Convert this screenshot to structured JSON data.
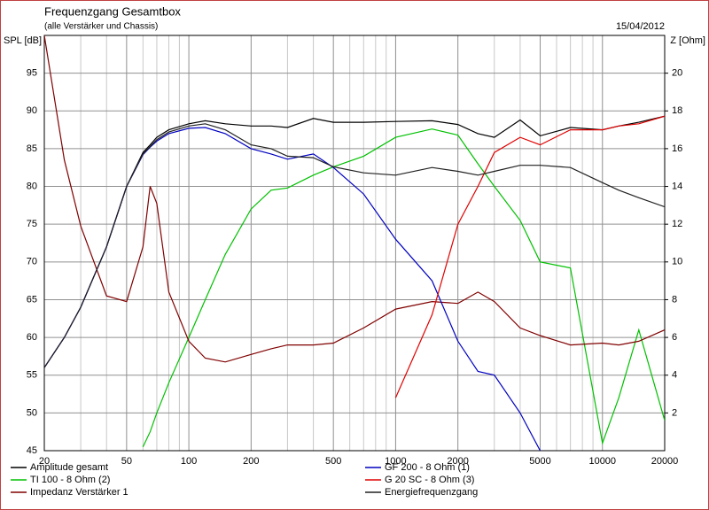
{
  "chart_data": {
    "type": "line",
    "title": "Frequenzgang Gesamtbox",
    "subtitle": "(alle Verstärker und Chassis)",
    "date": "15/04/2012",
    "ylabel": "SPL [dB]",
    "y2label": "Z [Ohm]",
    "log_x": true,
    "grid": true,
    "xlim": [
      20,
      20000
    ],
    "xticks": [
      20,
      50,
      100,
      200,
      500,
      1000,
      2000,
      5000,
      10000,
      20000
    ],
    "xminorticks": [
      30,
      40,
      60,
      70,
      80,
      90,
      300,
      400,
      600,
      700,
      800,
      900,
      3000,
      4000,
      6000,
      7000,
      8000,
      9000
    ],
    "ylim": [
      45,
      100
    ],
    "yticks": [
      45,
      50,
      55,
      60,
      65,
      70,
      75,
      80,
      85,
      90,
      95
    ],
    "y2lim": [
      0,
      22
    ],
    "y2ticks": [
      2,
      4,
      6,
      8,
      10,
      12,
      14,
      16,
      18,
      20
    ],
    "x": [
      20,
      25,
      30,
      40,
      50,
      60,
      65,
      70,
      80,
      100,
      120,
      150,
      200,
      250,
      300,
      400,
      500,
      700,
      1000,
      1500,
      2000,
      2500,
      3000,
      4000,
      5000,
      7000,
      10000,
      12000,
      15000,
      20000
    ],
    "series": [
      {
        "name": "Amplitude gesamt",
        "color": "#000000",
        "values": [
          56,
          60,
          64,
          72,
          80,
          84.5,
          85.5,
          86.5,
          87.5,
          88.3,
          88.7,
          88.3,
          88,
          88,
          87.8,
          89,
          88.5,
          88.5,
          88.6,
          88.7,
          88.2,
          87,
          86.5,
          88.8,
          86.7,
          87.8,
          87.5,
          88,
          88.5,
          89.3
        ]
      },
      {
        "name": "TI 100 - 8 Ohm (2)",
        "color": "#00c000",
        "values": [
          null,
          null,
          null,
          null,
          null,
          45.5,
          47.5,
          50,
          54,
          60,
          65,
          71,
          77,
          79.5,
          79.8,
          81.5,
          82.6,
          84,
          86.5,
          87.6,
          86.8,
          83,
          80,
          75.5,
          70,
          69.2,
          46,
          52,
          61,
          49
        ]
      },
      {
        "name": "Impedanz Verstärker 1",
        "color": "#800000",
        "axis": "y2",
        "values": [
          22,
          15.4,
          11.9,
          8.2,
          7.9,
          10.8,
          14,
          13.1,
          8.4,
          5.8,
          4.9,
          4.7,
          5.1,
          5.4,
          5.6,
          5.6,
          5.7,
          6.5,
          7.5,
          7.9,
          7.8,
          8.4,
          7.9,
          6.5,
          6.1,
          5.6,
          5.7,
          5.6,
          5.8,
          6.4
        ]
      },
      {
        "name": "GF 200 - 8 Ohm (1)",
        "color": "#0000c0",
        "values": [
          56,
          60,
          64,
          72,
          80,
          84.2,
          85.2,
          86,
          87,
          87.7,
          87.8,
          87,
          85,
          84.3,
          83.6,
          84.3,
          82.5,
          79,
          73,
          67.5,
          59.5,
          55.5,
          55,
          50,
          45,
          null,
          null,
          null,
          null,
          null
        ]
      },
      {
        "name": "G 20 SC - 8 Ohm (3)",
        "color": "#e00000",
        "values": [
          null,
          null,
          null,
          null,
          null,
          null,
          null,
          null,
          null,
          null,
          null,
          null,
          null,
          null,
          null,
          null,
          null,
          null,
          52,
          63,
          75,
          80,
          84.5,
          86.5,
          85.5,
          87.5,
          87.5,
          88,
          88.3,
          89.3
        ]
      },
      {
        "name": "Energiefrequenzgang",
        "color": "#202020",
        "values": [
          56,
          60,
          64,
          72,
          80,
          84.3,
          85.3,
          86.2,
          87.2,
          88,
          88.3,
          87.5,
          85.5,
          85,
          84,
          83.8,
          82.6,
          81.8,
          81.5,
          82.5,
          82,
          81.5,
          82,
          82.8,
          82.8,
          82.5,
          80.5,
          79.5,
          78.5,
          77.3
        ]
      }
    ]
  }
}
